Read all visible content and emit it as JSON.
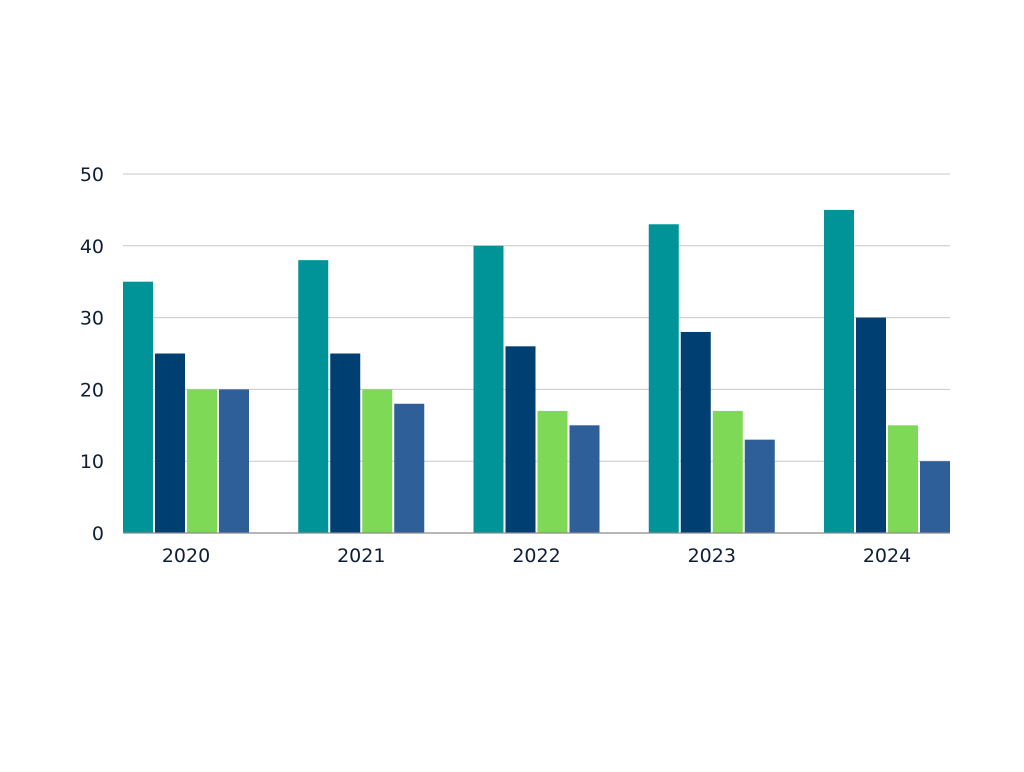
{
  "chart_data": {
    "type": "bar",
    "categories": [
      "2020",
      "2021",
      "2022",
      "2023",
      "2024"
    ],
    "series": [
      {
        "values": [
          35,
          38,
          40,
          43,
          45
        ],
        "color": "#009499"
      },
      {
        "values": [
          25,
          25,
          26,
          28,
          30
        ],
        "color": "#003f72"
      },
      {
        "values": [
          20,
          20,
          17,
          17,
          15
        ],
        "color": "#7ed957"
      },
      {
        "values": [
          20,
          18,
          15,
          13,
          10
        ],
        "color": "#2f5f98"
      }
    ],
    "yticks": [
      "0",
      "10",
      "20",
      "30",
      "40",
      "50"
    ],
    "ylim": [
      0,
      50
    ],
    "grid": true,
    "legend": "none",
    "gridline_color": "#c8c8c8",
    "axis_line_color": "#8a8a8a",
    "text_color": "#0f1f33"
  }
}
